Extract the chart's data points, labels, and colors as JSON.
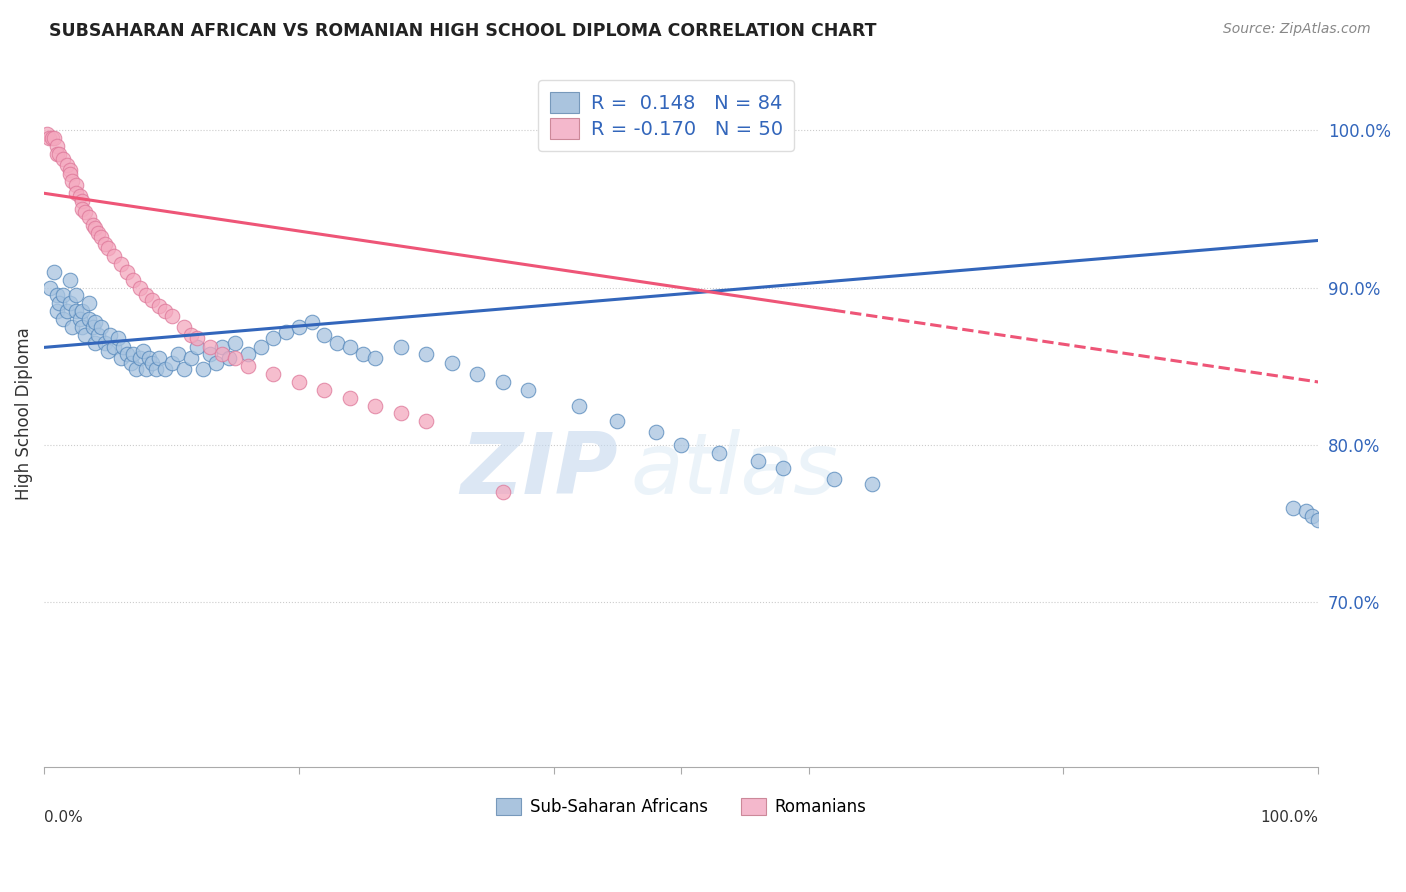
{
  "title": "SUBSAHARAN AFRICAN VS ROMANIAN HIGH SCHOOL DIPLOMA CORRELATION CHART",
  "source": "Source: ZipAtlas.com",
  "ylabel": "High School Diploma",
  "ytick_labels": [
    "70.0%",
    "80.0%",
    "90.0%",
    "100.0%"
  ],
  "ytick_values": [
    0.7,
    0.8,
    0.9,
    1.0
  ],
  "xlim": [
    0.0,
    1.0
  ],
  "ylim": [
    0.595,
    1.045
  ],
  "legend_blue_r": "0.148",
  "legend_blue_n": "84",
  "legend_pink_r": "-0.170",
  "legend_pink_n": "50",
  "blue_color": "#a8c4e0",
  "pink_color": "#f4a8be",
  "blue_edge_color": "#5588bb",
  "pink_edge_color": "#dd7799",
  "blue_line_color": "#3366bb",
  "pink_line_color": "#ee5577",
  "watermark_zip": "ZIP",
  "watermark_atlas": "atlas",
  "legend_label_blue": "Sub-Saharan Africans",
  "legend_label_pink": "Romanians",
  "blue_points_x": [
    0.005,
    0.008,
    0.01,
    0.01,
    0.012,
    0.015,
    0.015,
    0.018,
    0.02,
    0.02,
    0.022,
    0.025,
    0.025,
    0.028,
    0.03,
    0.03,
    0.032,
    0.035,
    0.035,
    0.038,
    0.04,
    0.04,
    0.042,
    0.045,
    0.048,
    0.05,
    0.052,
    0.055,
    0.058,
    0.06,
    0.062,
    0.065,
    0.068,
    0.07,
    0.072,
    0.075,
    0.078,
    0.08,
    0.082,
    0.085,
    0.088,
    0.09,
    0.095,
    0.1,
    0.105,
    0.11,
    0.115,
    0.12,
    0.125,
    0.13,
    0.135,
    0.14,
    0.145,
    0.15,
    0.16,
    0.17,
    0.18,
    0.19,
    0.2,
    0.21,
    0.22,
    0.23,
    0.24,
    0.25,
    0.26,
    0.28,
    0.3,
    0.32,
    0.34,
    0.36,
    0.38,
    0.42,
    0.45,
    0.48,
    0.5,
    0.53,
    0.56,
    0.58,
    0.62,
    0.65,
    0.98,
    0.99,
    0.995,
    1.0
  ],
  "blue_points_y": [
    0.9,
    0.91,
    0.885,
    0.895,
    0.89,
    0.88,
    0.895,
    0.885,
    0.89,
    0.905,
    0.875,
    0.885,
    0.895,
    0.88,
    0.875,
    0.885,
    0.87,
    0.88,
    0.89,
    0.875,
    0.865,
    0.878,
    0.87,
    0.875,
    0.865,
    0.86,
    0.87,
    0.862,
    0.868,
    0.855,
    0.862,
    0.858,
    0.852,
    0.858,
    0.848,
    0.855,
    0.86,
    0.848,
    0.855,
    0.852,
    0.848,
    0.855,
    0.848,
    0.852,
    0.858,
    0.848,
    0.855,
    0.862,
    0.848,
    0.858,
    0.852,
    0.862,
    0.855,
    0.865,
    0.858,
    0.862,
    0.868,
    0.872,
    0.875,
    0.878,
    0.87,
    0.865,
    0.862,
    0.858,
    0.855,
    0.862,
    0.858,
    0.852,
    0.845,
    0.84,
    0.835,
    0.825,
    0.815,
    0.808,
    0.8,
    0.795,
    0.79,
    0.785,
    0.778,
    0.775,
    0.76,
    0.758,
    0.755,
    0.752
  ],
  "pink_points_x": [
    0.002,
    0.004,
    0.006,
    0.008,
    0.01,
    0.01,
    0.012,
    0.015,
    0.018,
    0.02,
    0.02,
    0.022,
    0.025,
    0.025,
    0.028,
    0.03,
    0.03,
    0.032,
    0.035,
    0.038,
    0.04,
    0.042,
    0.045,
    0.048,
    0.05,
    0.055,
    0.06,
    0.065,
    0.07,
    0.075,
    0.08,
    0.085,
    0.09,
    0.095,
    0.1,
    0.11,
    0.115,
    0.12,
    0.13,
    0.14,
    0.15,
    0.16,
    0.18,
    0.2,
    0.22,
    0.24,
    0.26,
    0.28,
    0.3,
    0.36
  ],
  "pink_points_y": [
    0.998,
    0.995,
    0.995,
    0.995,
    0.99,
    0.985,
    0.985,
    0.982,
    0.978,
    0.975,
    0.972,
    0.968,
    0.965,
    0.96,
    0.958,
    0.955,
    0.95,
    0.948,
    0.945,
    0.94,
    0.938,
    0.935,
    0.932,
    0.928,
    0.925,
    0.92,
    0.915,
    0.91,
    0.905,
    0.9,
    0.895,
    0.892,
    0.888,
    0.885,
    0.882,
    0.875,
    0.87,
    0.868,
    0.862,
    0.858,
    0.855,
    0.85,
    0.845,
    0.84,
    0.835,
    0.83,
    0.825,
    0.82,
    0.815,
    0.77
  ],
  "blue_trend_x": [
    0.0,
    1.0
  ],
  "blue_trend_y_start": 0.862,
  "blue_trend_y_end": 0.93,
  "pink_trend_solid_end_x": 0.62,
  "pink_trend_x": [
    0.0,
    1.0
  ],
  "pink_trend_y_start": 0.96,
  "pink_trend_y_end": 0.84
}
